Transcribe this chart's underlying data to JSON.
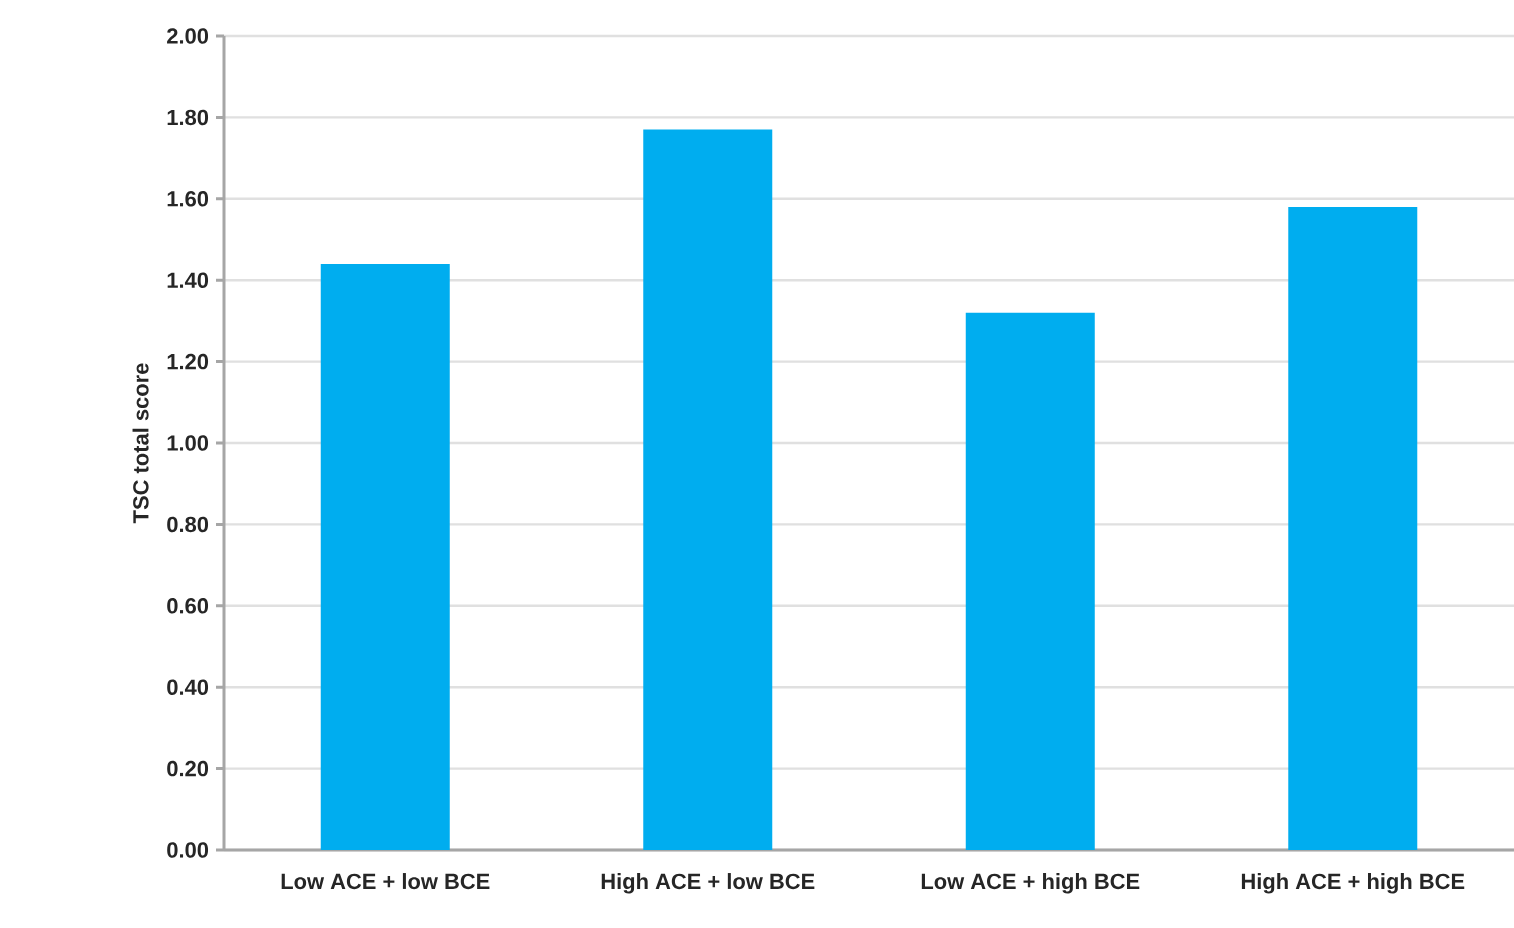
{
  "chart_data": {
    "type": "bar",
    "ylabel": "TSC total score",
    "categories": [
      "Low ACE + low BCE",
      "High ACE + low BCE",
      "Low ACE + high BCE",
      "High ACE + high BCE"
    ],
    "values": [
      1.44,
      1.77,
      1.32,
      1.58
    ],
    "color": "#00adef",
    "ylim": [
      0,
      2
    ],
    "yticks": [
      {
        "value": 0,
        "label": "0.00"
      },
      {
        "value": 0.2,
        "label": "0.20"
      },
      {
        "value": 0.4,
        "label": "0.40"
      },
      {
        "value": 0.6,
        "label": "0.60"
      },
      {
        "value": 0.8,
        "label": "0.80"
      },
      {
        "value": 1.0,
        "label": "1.00"
      },
      {
        "value": 1.2,
        "label": "1.20"
      },
      {
        "value": 1.4,
        "label": "1.40"
      },
      {
        "value": 1.6,
        "label": "1.60"
      },
      {
        "value": 1.8,
        "label": "1.80"
      },
      {
        "value": 2.0,
        "label": "2.00"
      }
    ],
    "grid": "y"
  }
}
